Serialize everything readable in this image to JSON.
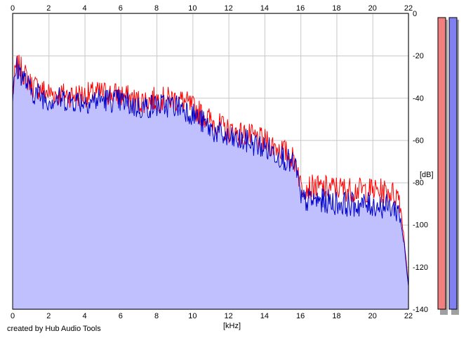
{
  "footer": "created by Hub Audio Tools",
  "chart_data": {
    "type": "line",
    "xlabel": "[kHz]",
    "ylabel": "[dB]",
    "xlim": [
      0,
      22
    ],
    "ylim": [
      -140,
      0
    ],
    "x_ticks": [
      0,
      2,
      4,
      6,
      8,
      10,
      12,
      14,
      16,
      18,
      20,
      22
    ],
    "y_ticks": [
      0,
      -20,
      -40,
      -60,
      -80,
      -100,
      -120,
      -140
    ],
    "grid": true,
    "x_ticks_position": "top and bottom",
    "y_ticks_position": "right",
    "fill_under": "blue series",
    "colors": {
      "red": "#ff0000",
      "blue": "#0000cc",
      "fill": "#c0c0ff",
      "grid": "#c8c8c8",
      "plot_bg": "#ffffff"
    },
    "series": [
      {
        "color": "red",
        "x": [
          0,
          0.2,
          0.5,
          1,
          2,
          3,
          4,
          5,
          6,
          7,
          8,
          9,
          9.5,
          10,
          11,
          12,
          13,
          14,
          15,
          15.8,
          16,
          17,
          18,
          19,
          20,
          21,
          21.5,
          21.8,
          22
        ],
        "y": [
          -38,
          -24,
          -26,
          -33,
          -37,
          -38,
          -38,
          -37,
          -38,
          -41,
          -40,
          -40,
          -41,
          -44,
          -50,
          -55,
          -57,
          -60,
          -64,
          -70,
          -81,
          -82,
          -82,
          -83,
          -83,
          -84,
          -86,
          -110,
          -128
        ]
      },
      {
        "color": "blue",
        "x": [
          0,
          0.2,
          0.5,
          1,
          2,
          3,
          4,
          5,
          6,
          7,
          8,
          9,
          9.5,
          10,
          11,
          12,
          13,
          14,
          15,
          15.8,
          16,
          17,
          18,
          19,
          20,
          21,
          21.5,
          21.8,
          22
        ],
        "y": [
          -40,
          -25,
          -28,
          -36,
          -40,
          -40,
          -41,
          -40,
          -41,
          -44,
          -43,
          -43,
          -44,
          -47,
          -54,
          -59,
          -60,
          -63,
          -67,
          -73,
          -88,
          -88,
          -89,
          -90,
          -90,
          -91,
          -93,
          -112,
          -130
        ]
      }
    ],
    "level_bars": [
      {
        "color": "#f08080"
      },
      {
        "color": "#8080f0"
      }
    ]
  }
}
